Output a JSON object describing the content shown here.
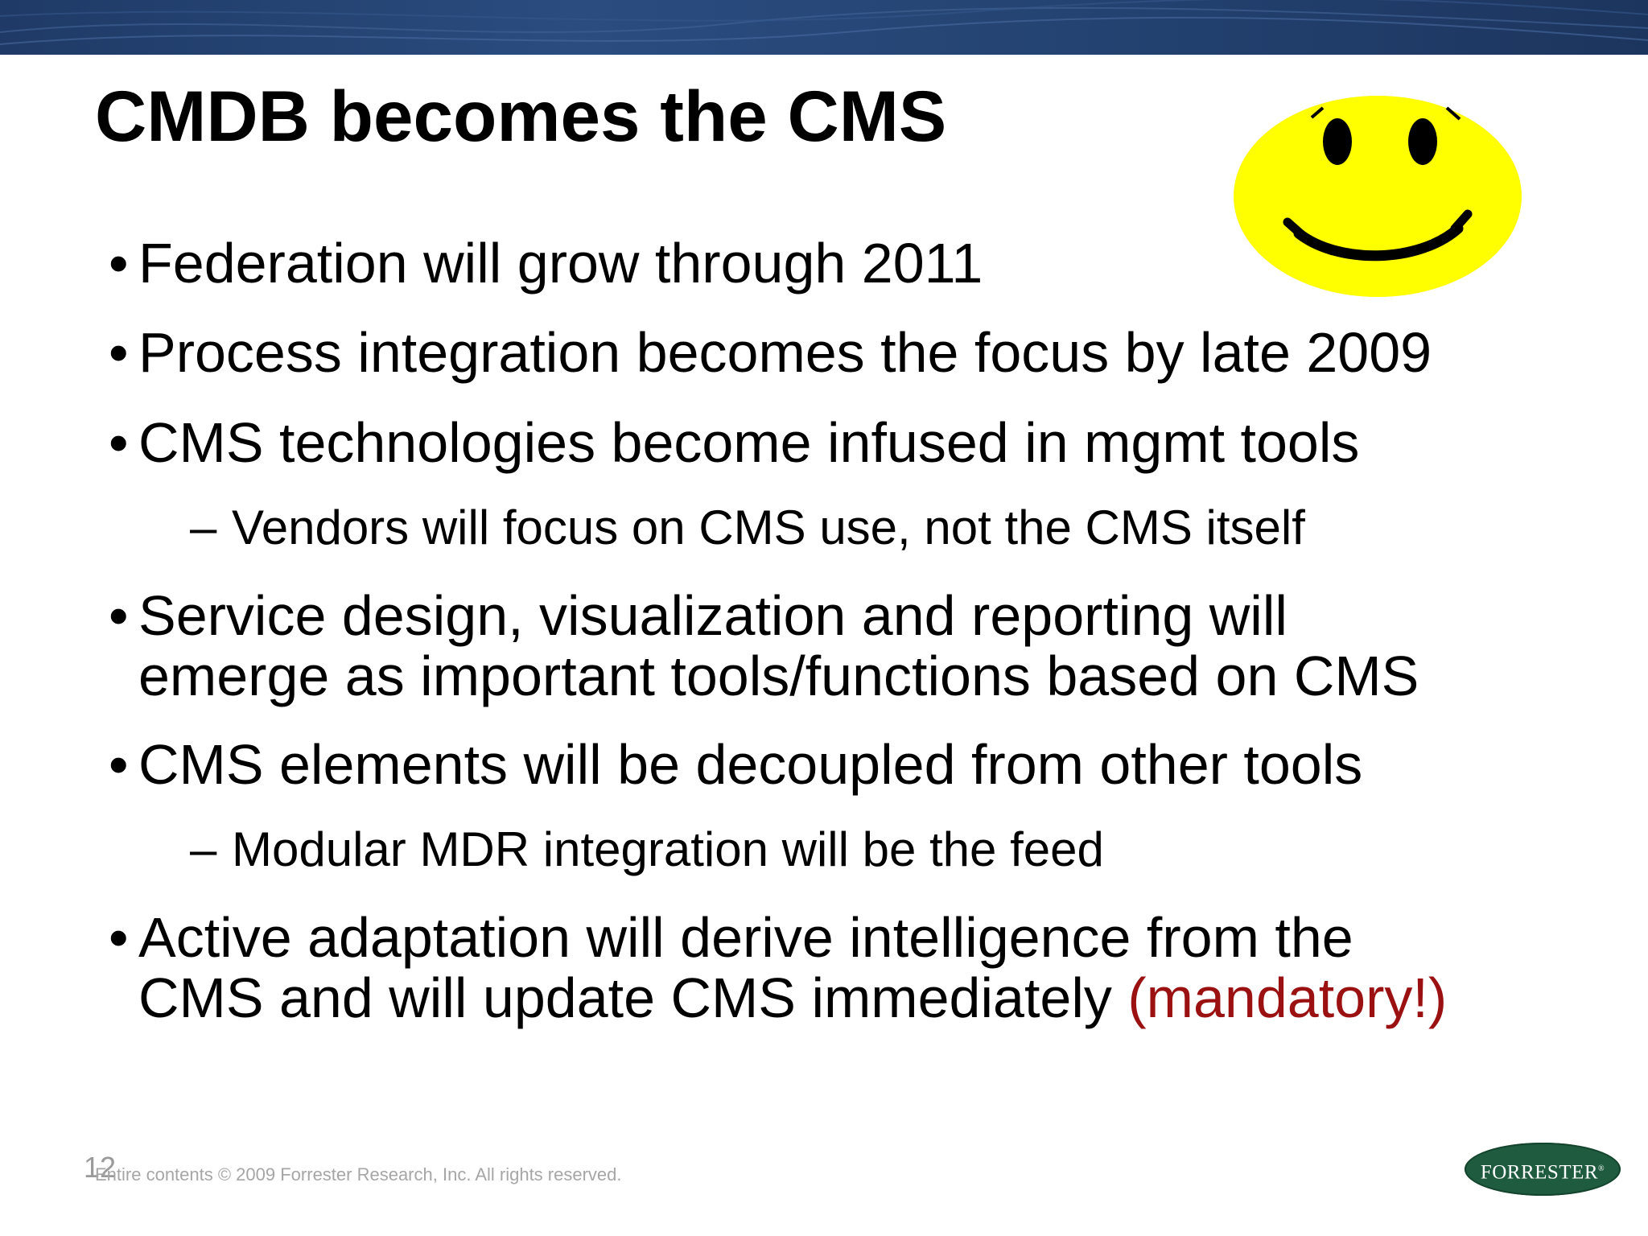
{
  "slide": {
    "title": "CMDB becomes the CMS",
    "bullets": [
      {
        "level": 1,
        "marker": "•",
        "lines": [
          "Federation will grow through 2011"
        ]
      },
      {
        "level": 1,
        "marker": "•",
        "lines": [
          "Process integration becomes the focus by late 2009"
        ]
      },
      {
        "level": 1,
        "marker": "•",
        "lines": [
          "CMS technologies become infused in mgmt tools"
        ]
      },
      {
        "level": 2,
        "marker": "–",
        "lines": [
          "Vendors will focus on CMS use, not the CMS itself"
        ]
      },
      {
        "level": 1,
        "marker": "•",
        "lines": [
          "Service design, visualization and reporting will",
          "emerge as important tools/functions based on CMS"
        ]
      },
      {
        "level": 1,
        "marker": "•",
        "lines": [
          "CMS elements will be decoupled from other tools"
        ]
      },
      {
        "level": 2,
        "marker": "–",
        "lines": [
          "Modular MDR integration will be the feed"
        ]
      },
      {
        "level": 1,
        "marker": "•",
        "lines": [
          "Active adaptation will derive intelligence from the",
          "CMS and will update CMS immediately "
        ],
        "highlight": "(mandatory!)"
      }
    ],
    "highlight_color": "#9b1111"
  },
  "footer": {
    "slide_number": "12",
    "copyright": "Entire contents © 2009  Forrester Research, Inc. All rights reserved.",
    "logo_text": "FORRESTER",
    "logo_mark": "®"
  },
  "colors": {
    "header_band": "#244372",
    "smiley_face": "#ffff00",
    "logo_green": "#1f5b3e"
  },
  "icons": {
    "smiley": "smiley-face-icon",
    "logo": "forrester-logo"
  }
}
